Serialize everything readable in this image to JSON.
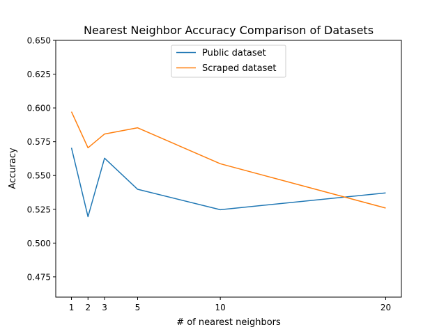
{
  "chart_data": {
    "type": "line",
    "title": "Nearest Neighbor Accuracy Comparison of Datasets",
    "xlabel": "# of nearest neighbors",
    "ylabel": "Accuracy",
    "x": [
      1,
      2,
      3,
      5,
      10,
      20
    ],
    "x_ticks": [
      "1",
      "2",
      "3",
      "5",
      "10",
      "20"
    ],
    "xlim": [
      0.05,
      20.95
    ],
    "ylim": [
      0.46,
      0.65
    ],
    "y_ticks": [
      "0.475",
      "0.500",
      "0.525",
      "0.550",
      "0.575",
      "0.600",
      "0.625",
      "0.650"
    ],
    "grid": false,
    "legend_position": "top-center",
    "series": [
      {
        "name": "Public dataset",
        "color": "#1f77b4",
        "values": [
          0.5705,
          0.5195,
          0.5628,
          0.5398,
          0.5247,
          0.5371
        ]
      },
      {
        "name": "Scraped dataset",
        "color": "#ff7f0e",
        "values": [
          0.5972,
          0.5705,
          0.5807,
          0.5853,
          0.5587,
          0.5259
        ]
      }
    ]
  }
}
